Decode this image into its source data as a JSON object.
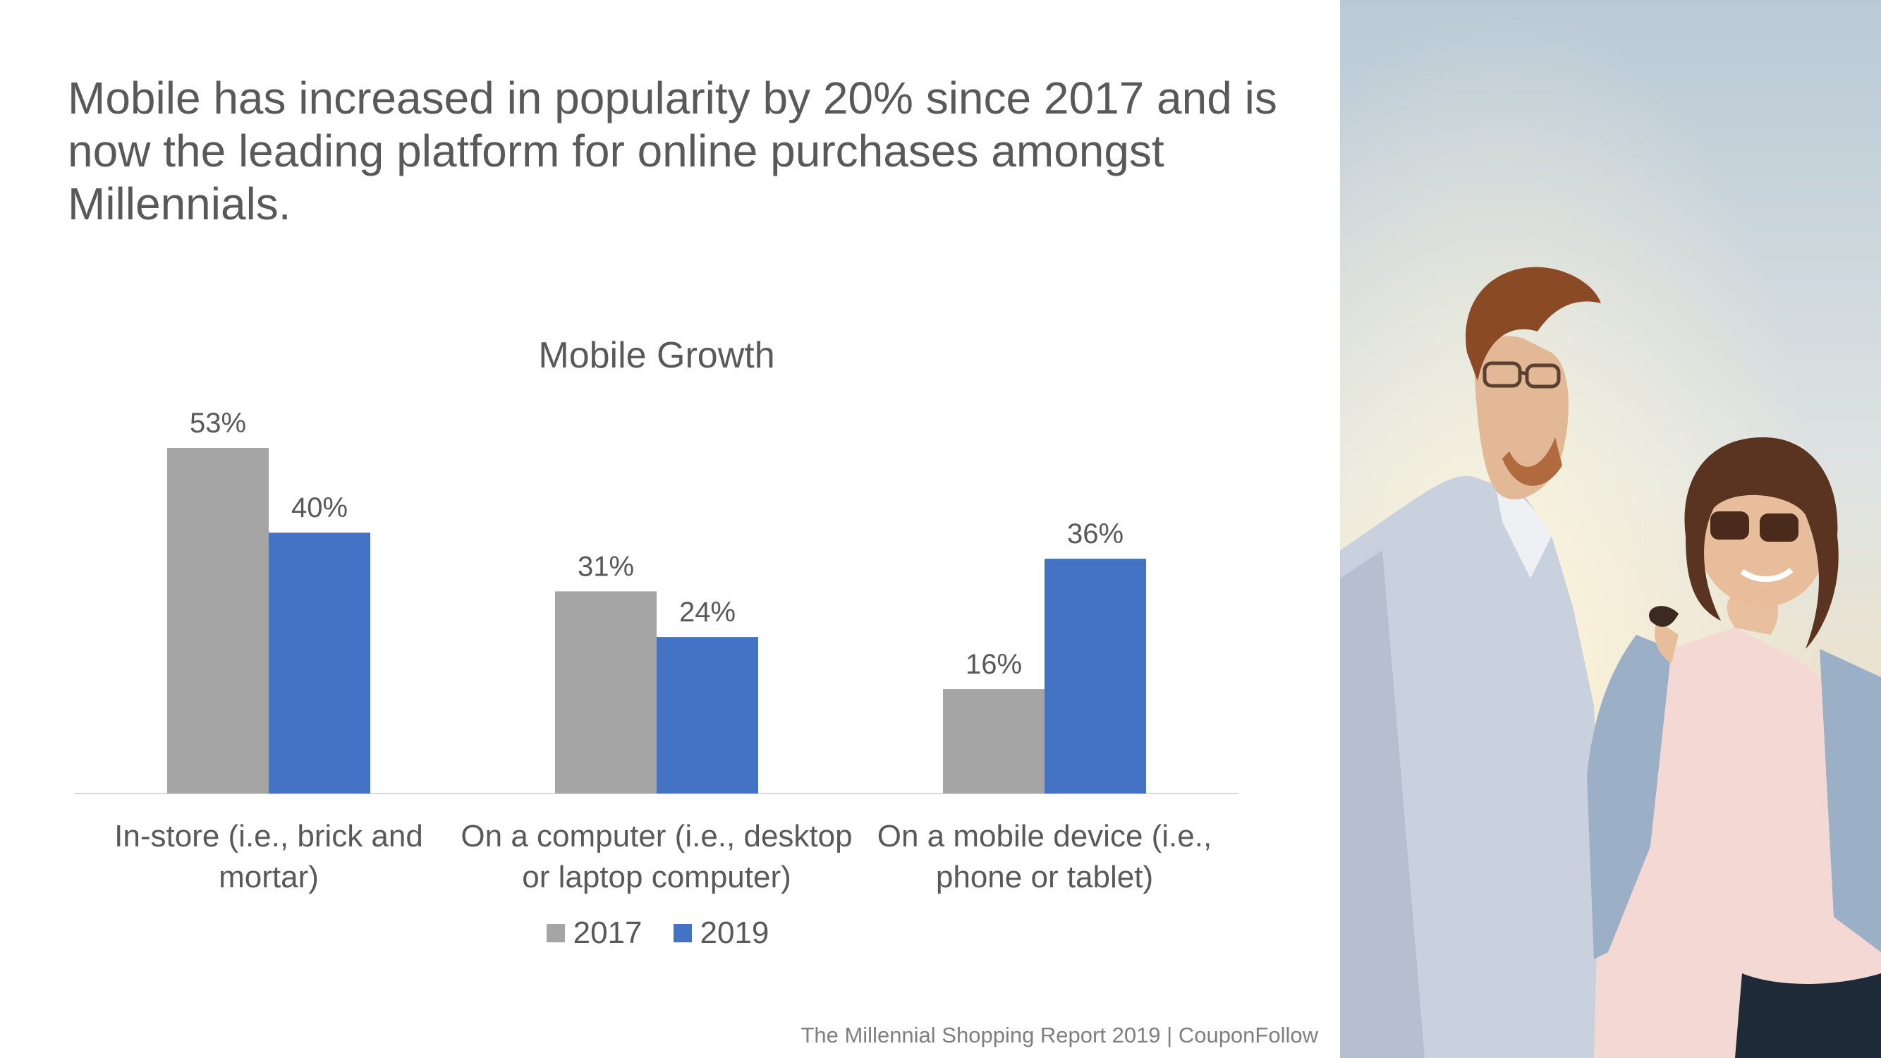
{
  "headline": "Mobile has increased in popularity by 20% since 2017 and is now the leading platform for online purchases amongst Millennials.",
  "footer": "The Millennial Shopping Report 2019 | CouponFollow",
  "colors": {
    "series_2017": "#a5a5a5",
    "series_2019": "#4472c4",
    "text": "#595959",
    "axis": "#d9d9d9"
  },
  "chart_data": {
    "type": "bar",
    "title": "Mobile Growth",
    "categories": [
      [
        "In-store (i.e., brick and",
        "mortar)"
      ],
      [
        "On a computer (i.e., desktop",
        "or laptop computer)"
      ],
      [
        "On a mobile device (i.e.,",
        "phone or tablet)"
      ]
    ],
    "series": [
      {
        "name": "2017",
        "values": [
          53,
          31,
          16
        ],
        "labels": [
          "53%",
          "31%",
          "16%"
        ]
      },
      {
        "name": "2019",
        "values": [
          40,
          24,
          36
        ],
        "labels": [
          "40%",
          "24%",
          "36%"
        ]
      }
    ],
    "ylim": [
      0,
      60
    ],
    "legend_position": "bottom",
    "grid": false
  }
}
